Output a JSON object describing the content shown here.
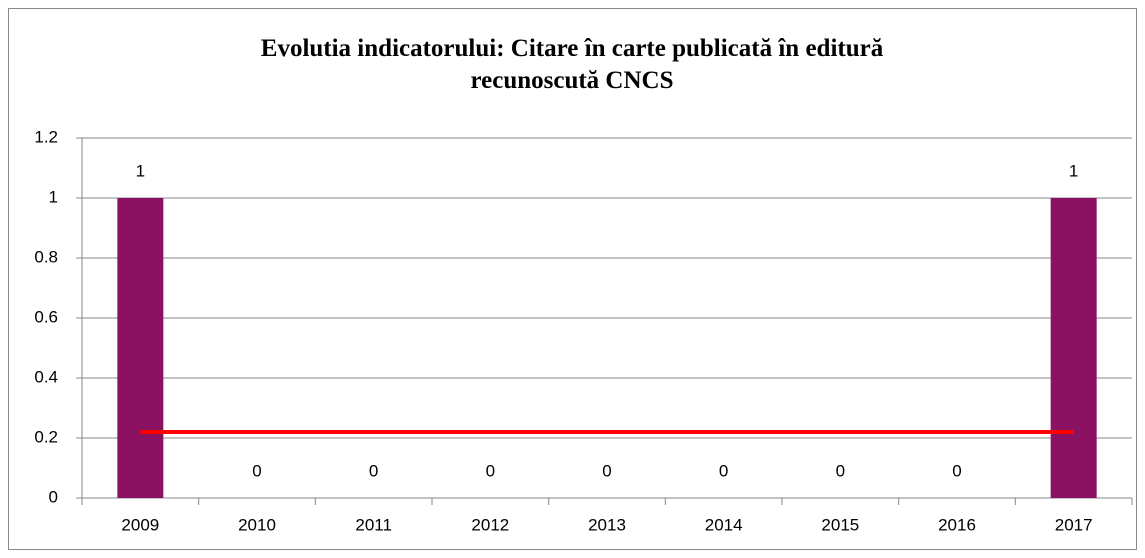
{
  "chart_data": {
    "type": "bar",
    "title": "Evolutia indicatorului: Citare în carte publicată în editură\nrecunoscută CNCS",
    "categories": [
      "2009",
      "2010",
      "2011",
      "2012",
      "2013",
      "2014",
      "2015",
      "2016",
      "2017"
    ],
    "series": [
      {
        "type": "bar",
        "color": "#8b1163",
        "values": [
          1,
          0,
          0,
          0,
          0,
          0,
          0,
          0,
          1
        ]
      },
      {
        "type": "line",
        "color": "#ff0000",
        "values": [
          0.22,
          0.22,
          0.22,
          0.22,
          0.22,
          0.22,
          0.22,
          0.22,
          0.22
        ]
      }
    ],
    "data_labels": true,
    "ylim": [
      0,
      1.2
    ],
    "yticks": [
      0,
      0.2,
      0.4,
      0.6,
      0.8,
      1,
      1.2
    ],
    "grid": true
  }
}
